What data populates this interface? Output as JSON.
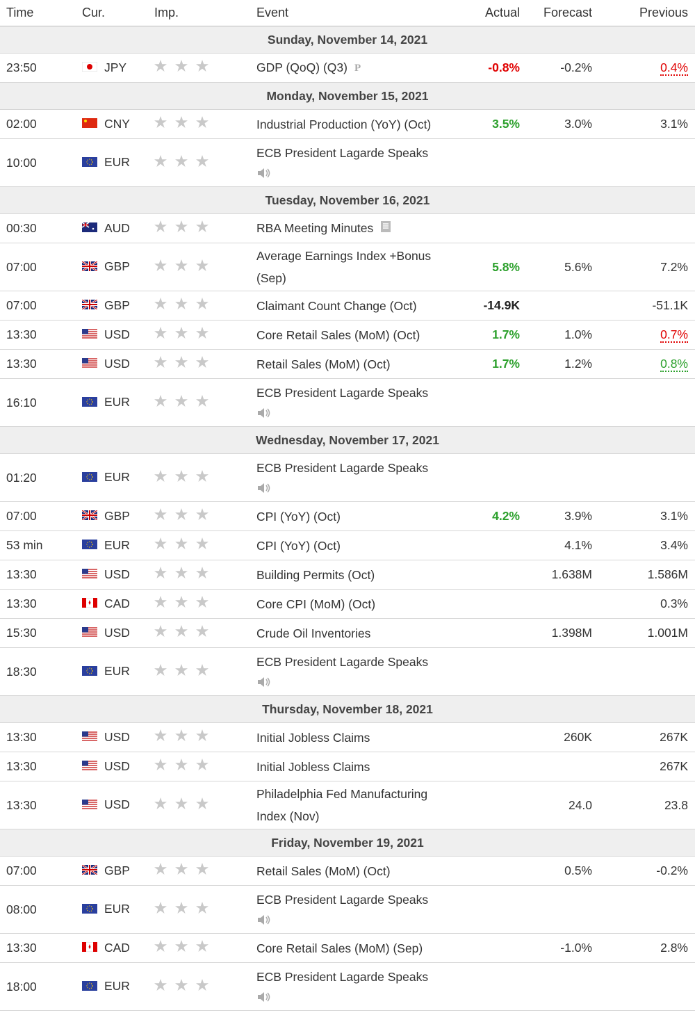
{
  "header": {
    "columns": [
      "Time",
      "Cur.",
      "Imp.",
      "Event",
      "Actual",
      "Forecast",
      "Previous"
    ]
  },
  "days": [
    {
      "date": "Sunday, November 14, 2021",
      "rows": [
        {
          "time": "23:50",
          "currency": "JPY",
          "event": "GDP (QoQ) (Q3)",
          "icon": "preliminary",
          "actual": "-0.8%",
          "actual_color": "#e00000",
          "forecast": "-0.2%",
          "previous": "0.4%",
          "previous_color": "#e00000"
        }
      ]
    },
    {
      "date": "Monday, November 15, 2021",
      "rows": [
        {
          "time": "02:00",
          "currency": "CNY",
          "event": "Industrial Production (YoY) (Oct)",
          "actual": "3.5%",
          "actual_color": "#2ca02c",
          "forecast": "3.0%",
          "previous": "3.1%"
        },
        {
          "time": "10:00",
          "currency": "EUR",
          "event": "ECB President Lagarde Speaks",
          "icon": "speech",
          "actual": null,
          "forecast": null,
          "previous": null
        }
      ]
    },
    {
      "date": "Tuesday, November 16, 2021",
      "rows": [
        {
          "time": "00:30",
          "currency": "AUD",
          "event": "RBA Meeting Minutes",
          "icon": "report",
          "actual": null,
          "forecast": null,
          "previous": null
        },
        {
          "time": "07:00",
          "currency": "GBP",
          "event": "Average Earnings Index +Bonus (Sep)",
          "tall": true,
          "actual": "5.8%",
          "actual_color": "#2ca02c",
          "forecast": "5.6%",
          "previous": "7.2%"
        },
        {
          "time": "07:00",
          "currency": "GBP",
          "event": "Claimant Count Change (Oct)",
          "actual": "-14.9K",
          "actual_color": "#222222",
          "forecast": null,
          "previous": "-51.1K"
        },
        {
          "time": "13:30",
          "currency": "USD",
          "event": "Core Retail Sales (MoM) (Oct)",
          "actual": "1.7%",
          "actual_color": "#2ca02c",
          "forecast": "1.0%",
          "previous": "0.7%",
          "previous_color": "#e00000"
        },
        {
          "time": "13:30",
          "currency": "USD",
          "event": "Retail Sales (MoM) (Oct)",
          "actual": "1.7%",
          "actual_color": "#2ca02c",
          "forecast": "1.2%",
          "previous": "0.8%",
          "previous_color": "#2ca02c"
        },
        {
          "time": "16:10",
          "currency": "EUR",
          "event": "ECB President Lagarde Speaks",
          "icon": "speech",
          "actual": null,
          "forecast": null,
          "previous": null
        }
      ]
    },
    {
      "date": "Wednesday, November 17, 2021",
      "rows": [
        {
          "time": "01:20",
          "currency": "EUR",
          "event": "ECB President Lagarde Speaks",
          "icon": "speech",
          "actual": null,
          "forecast": null,
          "previous": null
        },
        {
          "time": "07:00",
          "currency": "GBP",
          "event": "CPI (YoY) (Oct)",
          "actual": "4.2%",
          "actual_color": "#2ca02c",
          "forecast": "3.9%",
          "previous": "3.1%"
        },
        {
          "time": "53 min",
          "currency": "EUR",
          "event": "CPI (YoY) (Oct)",
          "actual": null,
          "forecast": "4.1%",
          "previous": "3.4%"
        },
        {
          "time": "13:30",
          "currency": "USD",
          "event": "Building Permits (Oct)",
          "actual": null,
          "forecast": "1.638M",
          "previous": "1.586M"
        },
        {
          "time": "13:30",
          "currency": "CAD",
          "event": "Core CPI (MoM) (Oct)",
          "actual": null,
          "forecast": null,
          "previous": "0.3%"
        },
        {
          "time": "15:30",
          "currency": "USD",
          "event": "Crude Oil Inventories",
          "actual": null,
          "forecast": "1.398M",
          "previous": "1.001M"
        },
        {
          "time": "18:30",
          "currency": "EUR",
          "event": "ECB President Lagarde Speaks",
          "icon": "speech",
          "actual": null,
          "forecast": null,
          "previous": null
        }
      ]
    },
    {
      "date": "Thursday, November 18, 2021",
      "rows": [
        {
          "time": "13:30",
          "currency": "USD",
          "event": "Initial Jobless Claims",
          "actual": null,
          "forecast": "260K",
          "previous": "267K"
        },
        {
          "time": "13:30",
          "currency": "USD",
          "event": "Initial Jobless Claims",
          "actual": null,
          "forecast": null,
          "previous": "267K"
        },
        {
          "time": "13:30",
          "currency": "USD",
          "event": "Philadelphia Fed Manufacturing Index (Nov)",
          "tall": true,
          "actual": null,
          "forecast": "24.0",
          "previous": "23.8"
        }
      ]
    },
    {
      "date": "Friday, November 19, 2021",
      "rows": [
        {
          "time": "07:00",
          "currency": "GBP",
          "event": "Retail Sales (MoM) (Oct)",
          "actual": null,
          "forecast": "0.5%",
          "previous": "-0.2%"
        },
        {
          "time": "08:00",
          "currency": "EUR",
          "event": "ECB President Lagarde Speaks",
          "icon": "speech",
          "actual": null,
          "forecast": null,
          "previous": null
        },
        {
          "time": "13:30",
          "currency": "CAD",
          "event": "Core Retail Sales (MoM) (Sep)",
          "actual": null,
          "forecast": "-1.0%",
          "previous": "2.8%"
        },
        {
          "time": "18:00",
          "currency": "EUR",
          "event": "ECB President Lagarde Speaks",
          "icon": "speech",
          "actual": null,
          "forecast": null,
          "previous": null
        }
      ]
    }
  ]
}
